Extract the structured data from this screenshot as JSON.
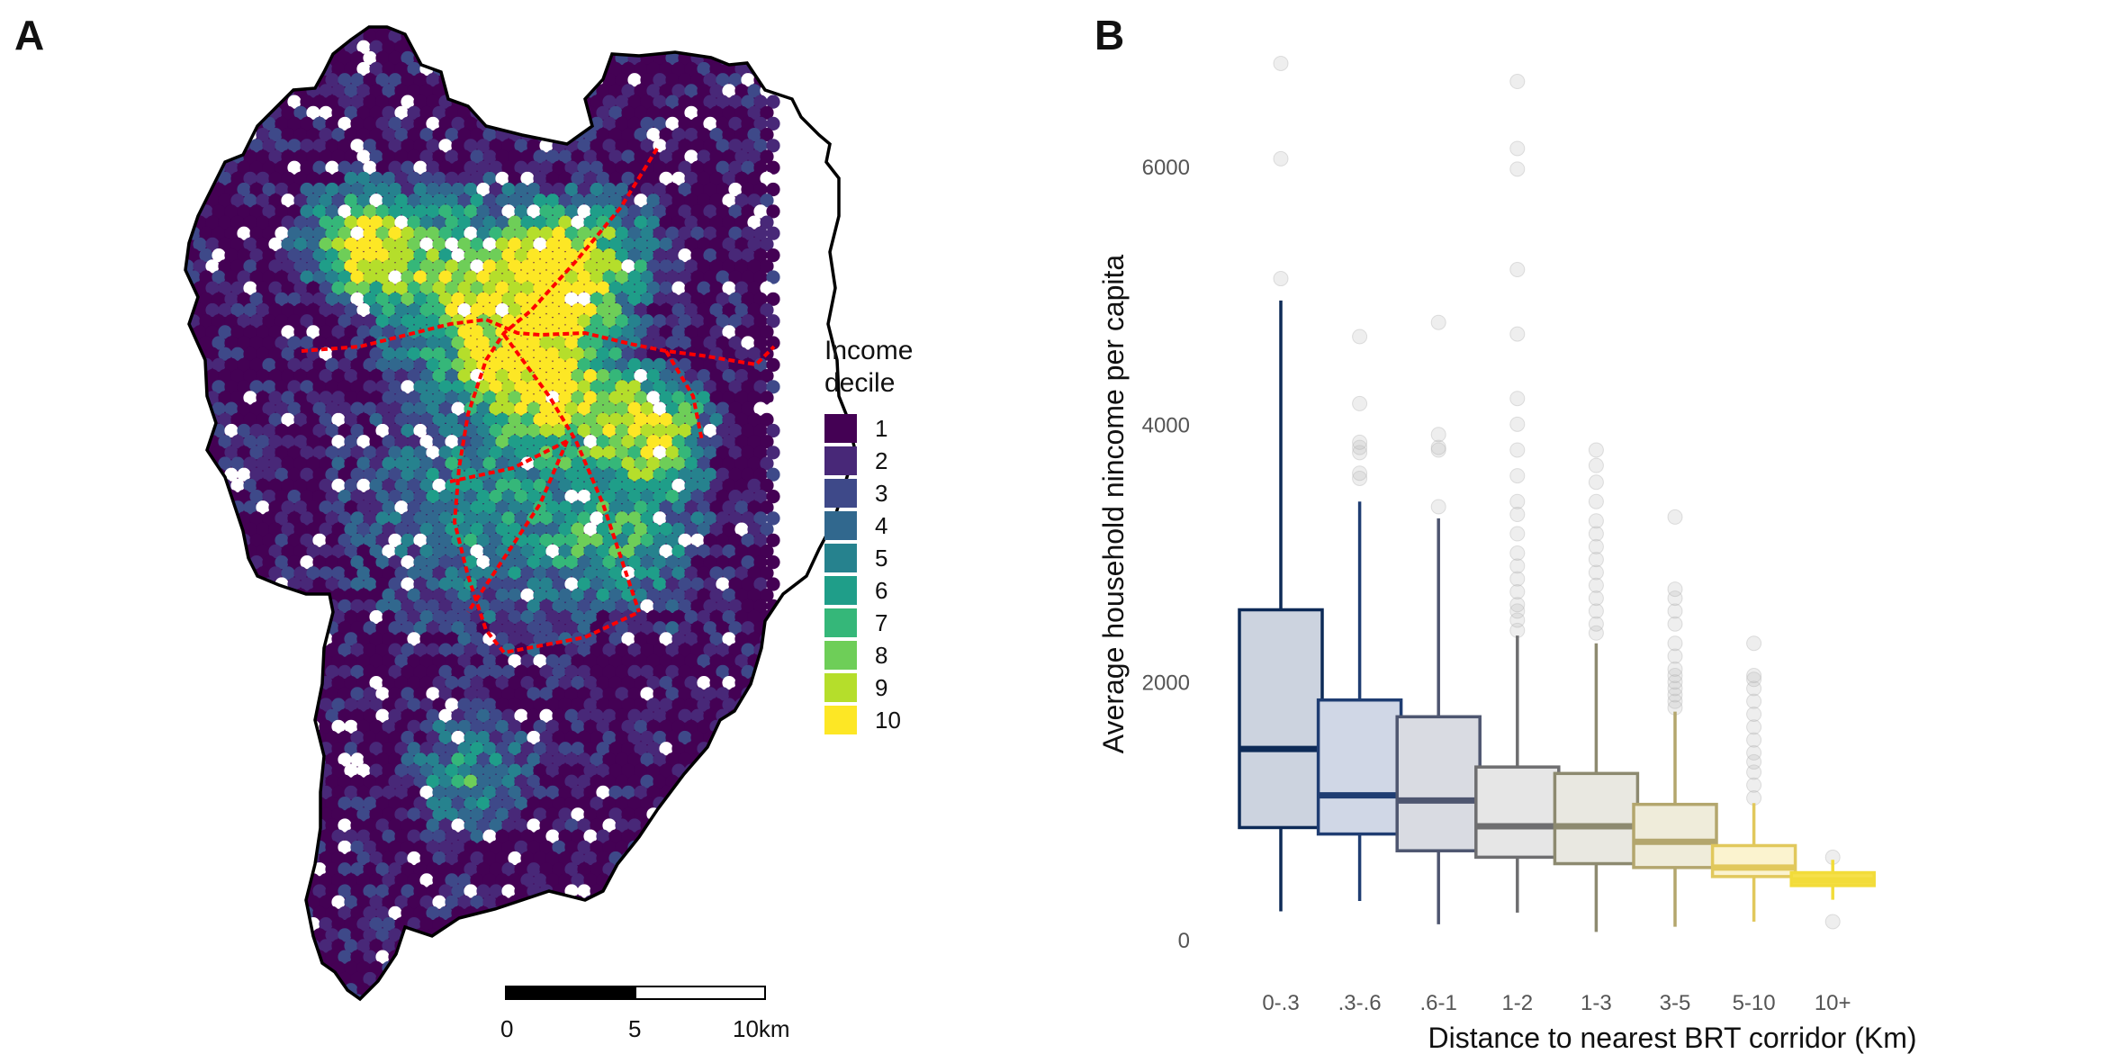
{
  "panel_a": {
    "letter": "A",
    "legend": {
      "title_line1": "Income",
      "title_line2": "decile",
      "items": [
        {
          "label": "1",
          "color": "#440154"
        },
        {
          "label": "2",
          "color": "#482878"
        },
        {
          "label": "3",
          "color": "#3e4989"
        },
        {
          "label": "4",
          "color": "#31688e"
        },
        {
          "label": "5",
          "color": "#26828e"
        },
        {
          "label": "6",
          "color": "#1f9e89"
        },
        {
          "label": "7",
          "color": "#35b779"
        },
        {
          "label": "8",
          "color": "#6ece58"
        },
        {
          "label": "9",
          "color": "#b5de2b"
        },
        {
          "label": "10",
          "color": "#fde725"
        }
      ]
    },
    "scale_bar": {
      "labels": [
        "0",
        "5",
        "10km"
      ]
    },
    "corridor_color": "#ff0000"
  },
  "panel_b": {
    "letter": "B",
    "chart_data": {
      "type": "box",
      "xlabel": "Distance to nearest BRT corridor (Km)",
      "ylabel": "Average household nincome per capita",
      "ylim": [
        -100,
        6900
      ],
      "yticks": [
        0,
        2000,
        4000,
        6000
      ],
      "grid": false,
      "categories": [
        "0-.3",
        ".3-.6",
        ".6-1",
        "1-2",
        "1-3",
        "3-5",
        "5-10",
        "10+"
      ],
      "boxes": [
        {
          "min": 220,
          "q1": 870,
          "median": 1480,
          "q3": 2560,
          "max": 4960,
          "color": "#0d2a57",
          "fill": "#ccd3df",
          "outliers": [
            5130,
            6060,
            6800
          ]
        },
        {
          "min": 300,
          "q1": 820,
          "median": 1120,
          "q3": 1860,
          "max": 3400,
          "color": "#1f3d72",
          "fill": "#d0d7e6",
          "outliers": [
            3580,
            3620,
            3780,
            3820,
            3860,
            4160,
            4680
          ]
        },
        {
          "min": 120,
          "q1": 690,
          "median": 1080,
          "q3": 1730,
          "max": 3270,
          "color": "#4e5670",
          "fill": "#d9dbe2",
          "outliers": [
            3360,
            3800,
            3820,
            3920,
            4790
          ]
        },
        {
          "min": 210,
          "q1": 640,
          "median": 880,
          "q3": 1340,
          "max": 2360,
          "color": "#6e6e70",
          "fill": "#e6e6e6",
          "outliers": [
            2400,
            2480,
            2550,
            2600,
            2700,
            2800,
            2900,
            3000,
            3150,
            3300,
            3400,
            3600,
            3800,
            4000,
            4200,
            4700,
            5200,
            5980,
            6140,
            6660
          ]
        },
        {
          "min": 60,
          "q1": 590,
          "median": 880,
          "q3": 1290,
          "max": 2300,
          "color": "#8d8a70",
          "fill": "#e9e8e1",
          "outliers": [
            2380,
            2450,
            2550,
            2650,
            2750,
            2850,
            2950,
            3050,
            3150,
            3250,
            3400,
            3550,
            3680,
            3800
          ]
        },
        {
          "min": 100,
          "q1": 560,
          "median": 760,
          "q3": 1050,
          "max": 1770,
          "color": "#b3a66d",
          "fill": "#efecda",
          "outliers": [
            1800,
            1850,
            1900,
            1950,
            2000,
            2050,
            2100,
            2200,
            2300,
            2450,
            2550,
            2650,
            2720,
            3280
          ]
        },
        {
          "min": 140,
          "q1": 490,
          "median": 560,
          "q3": 730,
          "max": 1060,
          "color": "#e1c85c",
          "fill": "#fbf3cf",
          "outliers": [
            1100,
            1200,
            1300,
            1380,
            1450,
            1550,
            1650,
            1750,
            1850,
            1950,
            2020,
            2050,
            2300
          ]
        },
        {
          "min": 310,
          "q1": 420,
          "median": 460,
          "q3": 520,
          "max": 620,
          "color": "#f2dc3a",
          "fill": "#f6e04a",
          "outliers": [
            140,
            640
          ]
        }
      ]
    }
  }
}
